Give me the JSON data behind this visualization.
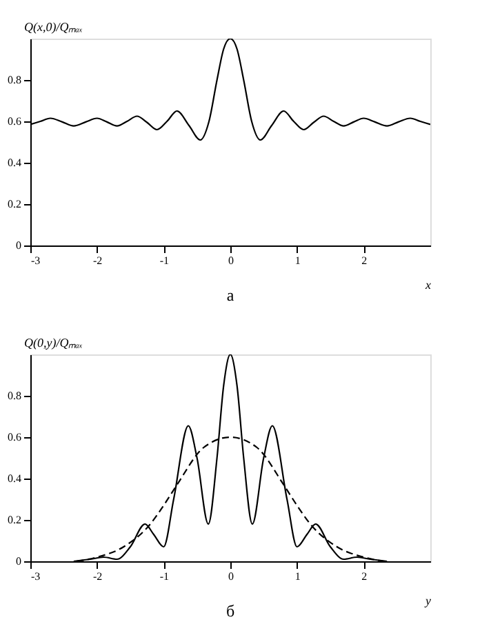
{
  "chart_data": [
    {
      "type": "line",
      "ylabel": "Q(x,0)/Qₘₐₓ",
      "xlabel": "x",
      "annotations": [
        "а"
      ],
      "xlim": [
        -3,
        3
      ],
      "ylim": [
        0,
        1
      ],
      "xticks": [
        -3,
        -2,
        -1,
        0,
        1,
        2
      ],
      "yticks": [
        0,
        0.2,
        0.4,
        0.6,
        0.8
      ],
      "marker": "none",
      "series": [
        {
          "color": "#000000",
          "line_style": "solid",
          "x": [
            -3,
            -2.85,
            -2.7,
            -2.52,
            -2.35,
            -2.17,
            -2.0,
            -1.85,
            -1.7,
            -1.55,
            -1.4,
            -1.25,
            -1.1,
            -0.95,
            -0.8,
            -0.62,
            -0.45,
            -0.32,
            -0.2,
            -0.1,
            0,
            0.1,
            0.2,
            0.32,
            0.45,
            0.62,
            0.8,
            0.95,
            1.1,
            1.25,
            1.4,
            1.55,
            1.7,
            1.85,
            2.0,
            2.17,
            2.35,
            2.52,
            2.7,
            2.85,
            3
          ],
          "values": [
            0.585,
            0.6,
            0.615,
            0.597,
            0.578,
            0.597,
            0.615,
            0.597,
            0.578,
            0.6,
            0.625,
            0.595,
            0.56,
            0.6,
            0.65,
            0.58,
            0.51,
            0.6,
            0.8,
            0.95,
            1.0,
            0.95,
            0.8,
            0.6,
            0.51,
            0.58,
            0.65,
            0.6,
            0.56,
            0.595,
            0.625,
            0.6,
            0.578,
            0.597,
            0.615,
            0.597,
            0.578,
            0.597,
            0.615,
            0.6,
            0.585
          ]
        }
      ]
    },
    {
      "type": "line",
      "ylabel": "Q(0,y)/Qₘₐₓ",
      "xlabel": "y",
      "annotations": [
        "б"
      ],
      "xlim": [
        -3,
        3
      ],
      "ylim": [
        0,
        1
      ],
      "xticks": [
        -3,
        -2,
        -1,
        0,
        1,
        2
      ],
      "yticks": [
        0,
        0.2,
        0.4,
        0.6,
        0.8
      ],
      "marker": "none",
      "series": [
        {
          "color": "#000000",
          "line_style": "solid",
          "x": [
            -2.35,
            -2.1,
            -1.9,
            -1.7,
            -1.5,
            -1.28,
            -1.15,
            -1.0,
            -0.85,
            -0.63,
            -0.5,
            -0.33,
            -0.2,
            -0.1,
            0,
            0.1,
            0.2,
            0.33,
            0.5,
            0.63,
            0.85,
            1.0,
            1.15,
            1.28,
            1.5,
            1.7,
            1.9,
            2.1,
            2.35
          ],
          "values": [
            0.0,
            0.01,
            0.02,
            0.01,
            0.07,
            0.18,
            0.13,
            0.07,
            0.3,
            0.655,
            0.5,
            0.18,
            0.5,
            0.85,
            1.0,
            0.85,
            0.5,
            0.18,
            0.5,
            0.655,
            0.3,
            0.07,
            0.13,
            0.18,
            0.07,
            0.01,
            0.02,
            0.01,
            0.0
          ]
        },
        {
          "color": "#000000",
          "line_style": "dashed",
          "x": [
            -2.3,
            -2.0,
            -1.6,
            -1.2,
            -1.0,
            -0.8,
            -0.4,
            0,
            0.4,
            0.8,
            1.0,
            1.2,
            1.6,
            2.0,
            2.3
          ],
          "values": [
            0.0,
            0.02,
            0.07,
            0.18,
            0.27,
            0.37,
            0.55,
            0.6,
            0.55,
            0.37,
            0.27,
            0.18,
            0.07,
            0.02,
            0.0
          ]
        }
      ]
    }
  ]
}
